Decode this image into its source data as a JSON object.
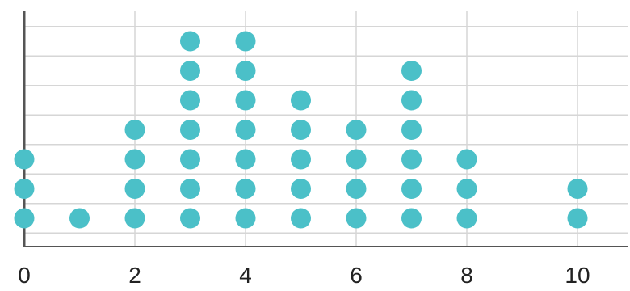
{
  "chart_data": {
    "type": "scatter",
    "subtype": "dot-plot",
    "title": "",
    "xlabel": "",
    "ylabel": "",
    "xlim": [
      0,
      10
    ],
    "x_ticks": [
      0,
      2,
      4,
      6,
      8,
      10
    ],
    "x_tick_labels": [
      "0",
      "2",
      "4",
      "6",
      "8",
      "10"
    ],
    "grid": true,
    "dot_color": "#4BC0C8",
    "axis_color": "#555555",
    "grid_color": "#d6d6d6",
    "points": [
      {
        "x": 0,
        "count": 3
      },
      {
        "x": 1,
        "count": 1
      },
      {
        "x": 2,
        "count": 4
      },
      {
        "x": 3,
        "count": 7
      },
      {
        "x": 4,
        "count": 7
      },
      {
        "x": 5,
        "count": 5
      },
      {
        "x": 6,
        "count": 4
      },
      {
        "x": 7,
        "count": 6
      },
      {
        "x": 8,
        "count": 3
      },
      {
        "x": 10,
        "count": 2
      }
    ]
  }
}
